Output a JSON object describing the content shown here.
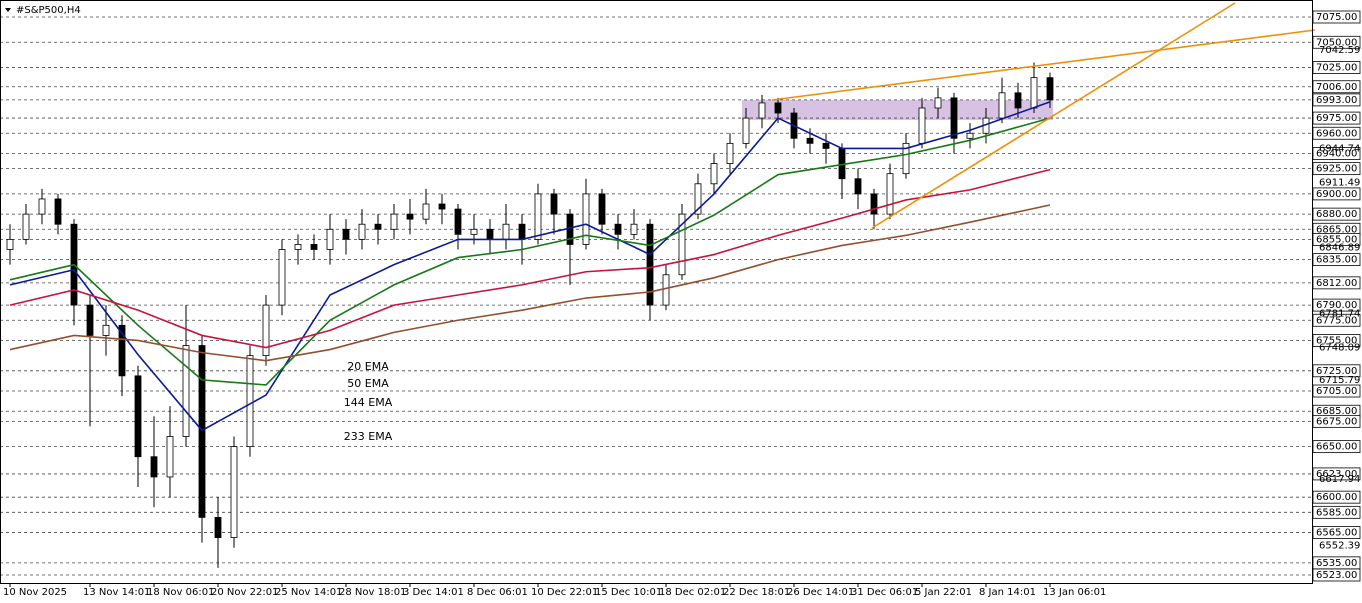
{
  "chart_data": {
    "type": "candlestick",
    "title": "#S&P500,H4",
    "xlim": [
      0,
      65
    ],
    "ylim": [
      6523,
      7075
    ],
    "xticks": [
      {
        "value": 0,
        "label": "10 Nov 2025"
      },
      {
        "value": 5,
        "label": "13 Nov 14:01"
      },
      {
        "value": 9,
        "label": "18 Nov 06:01"
      },
      {
        "value": 13,
        "label": "20 Nov 22:01"
      },
      {
        "value": 17,
        "label": "25 Nov 14:01"
      },
      {
        "value": 21,
        "label": "28 Nov 18:01"
      },
      {
        "value": 25,
        "label": "3 Dec 14:01"
      },
      {
        "value": 29,
        "label": "8 Dec 06:01"
      },
      {
        "value": 33,
        "label": "10 Dec 22:01"
      },
      {
        "value": 37,
        "label": "15 Dec 10:01"
      },
      {
        "value": 41,
        "label": "18 Dec 02:01"
      },
      {
        "value": 45,
        "label": "22 Dec 18:01"
      },
      {
        "value": 49,
        "label": "26 Dec 14:01"
      },
      {
        "value": 53,
        "label": "31 Dec 06:01"
      },
      {
        "value": 57,
        "label": "5 Jan 22:01"
      },
      {
        "value": 61,
        "label": "8 Jan 14:01"
      },
      {
        "value": 65,
        "label": "13 Jan 06:01"
      }
    ],
    "yticks": [
      {
        "value": 7075,
        "label": "7075.00"
      },
      {
        "value": 7050,
        "label": "7050.00"
      },
      {
        "value": 7025,
        "label": "7025.00"
      },
      {
        "value": 7006,
        "label": "7006.00"
      },
      {
        "value": 6993,
        "label": "6993.00"
      },
      {
        "value": 6975,
        "label": "6975.00"
      },
      {
        "value": 6960,
        "label": "6960.00"
      },
      {
        "value": 6940,
        "label": "6940.00"
      },
      {
        "value": 6925,
        "label": "6925.00"
      },
      {
        "value": 6900,
        "label": "6900.00"
      },
      {
        "value": 6880,
        "label": "6880.00"
      },
      {
        "value": 6865,
        "label": "6865.00"
      },
      {
        "value": 6855,
        "label": "6855.00"
      },
      {
        "value": 6835,
        "label": "6835.00"
      },
      {
        "value": 6812,
        "label": "6812.00"
      },
      {
        "value": 6790,
        "label": "6790.00"
      },
      {
        "value": 6775,
        "label": "6775.00"
      },
      {
        "value": 6755,
        "label": "6755.00"
      },
      {
        "value": 6725,
        "label": "6725.00"
      },
      {
        "value": 6705,
        "label": "6705.00"
      },
      {
        "value": 6685,
        "label": "6685.00"
      },
      {
        "value": 6675,
        "label": "6675.00"
      },
      {
        "value": 6650,
        "label": "6650.00"
      },
      {
        "value": 6623,
        "label": "6623.00"
      },
      {
        "value": 6600,
        "label": "6600.00"
      },
      {
        "value": 6585,
        "label": "6585.00"
      },
      {
        "value": 6565,
        "label": "6565.00"
      },
      {
        "value": 6535,
        "label": "6535.00"
      },
      {
        "value": 6523,
        "label": "6523.00"
      }
    ],
    "price_labels": [
      7042.59,
      6944.74,
      6911.49,
      6846.89,
      6781.74,
      6748.09,
      6715.79,
      6617.94,
      6552.39
    ],
    "ohlc": [
      [
        6845,
        6870,
        6830,
        6855
      ],
      [
        6855,
        6890,
        6850,
        6880
      ],
      [
        6880,
        6905,
        6870,
        6895
      ],
      [
        6895,
        6900,
        6860,
        6870
      ],
      [
        6870,
        6875,
        6770,
        6790
      ],
      [
        6790,
        6800,
        6670,
        6760
      ],
      [
        6760,
        6790,
        6740,
        6770
      ],
      [
        6770,
        6780,
        6700,
        6720
      ],
      [
        6720,
        6730,
        6610,
        6640
      ],
      [
        6640,
        6680,
        6590,
        6620
      ],
      [
        6620,
        6690,
        6600,
        6660
      ],
      [
        6660,
        6790,
        6650,
        6750
      ],
      [
        6750,
        6760,
        6555,
        6580
      ],
      [
        6580,
        6600,
        6530,
        6560
      ],
      [
        6560,
        6660,
        6550,
        6650
      ],
      [
        6650,
        6750,
        6640,
        6740
      ],
      [
        6740,
        6800,
        6730,
        6790
      ],
      [
        6790,
        6855,
        6780,
        6845
      ],
      [
        6845,
        6860,
        6830,
        6850
      ],
      [
        6850,
        6860,
        6835,
        6845
      ],
      [
        6845,
        6880,
        6830,
        6865
      ],
      [
        6865,
        6875,
        6840,
        6855
      ],
      [
        6855,
        6885,
        6845,
        6870
      ],
      [
        6870,
        6880,
        6850,
        6865
      ],
      [
        6865,
        6890,
        6855,
        6880
      ],
      [
        6880,
        6895,
        6860,
        6875
      ],
      [
        6875,
        6905,
        6870,
        6890
      ],
      [
        6890,
        6900,
        6870,
        6885
      ],
      [
        6885,
        6890,
        6845,
        6860
      ],
      [
        6860,
        6880,
        6850,
        6865
      ],
      [
        6865,
        6875,
        6840,
        6855
      ],
      [
        6855,
        6890,
        6845,
        6870
      ],
      [
        6870,
        6880,
        6830,
        6855
      ],
      [
        6855,
        6910,
        6850,
        6900
      ],
      [
        6900,
        6905,
        6860,
        6880
      ],
      [
        6880,
        6885,
        6810,
        6850
      ],
      [
        6850,
        6915,
        6845,
        6900
      ],
      [
        6900,
        6905,
        6860,
        6870
      ],
      [
        6870,
        6880,
        6845,
        6860
      ],
      [
        6860,
        6885,
        6855,
        6870
      ],
      [
        6870,
        6875,
        6775,
        6790
      ],
      [
        6790,
        6830,
        6785,
        6820
      ],
      [
        6820,
        6890,
        6815,
        6880
      ],
      [
        6880,
        6920,
        6875,
        6910
      ],
      [
        6910,
        6940,
        6900,
        6930
      ],
      [
        6930,
        6960,
        6920,
        6950
      ],
      [
        6950,
        6985,
        6945,
        6975
      ],
      [
        6975,
        6998,
        6965,
        6990
      ],
      [
        6990,
        6995,
        6970,
        6980
      ],
      [
        6980,
        6985,
        6945,
        6955
      ],
      [
        6955,
        6965,
        6940,
        6950
      ],
      [
        6950,
        6960,
        6930,
        6945
      ],
      [
        6945,
        6950,
        6895,
        6915
      ],
      [
        6915,
        6925,
        6885,
        6900
      ],
      [
        6900,
        6905,
        6865,
        6880
      ],
      [
        6880,
        6930,
        6875,
        6920
      ],
      [
        6920,
        6960,
        6915,
        6950
      ],
      [
        6950,
        6995,
        6945,
        6985
      ],
      [
        6985,
        7005,
        6975,
        6995
      ],
      [
        6995,
        7000,
        6940,
        6955
      ],
      [
        6955,
        6970,
        6945,
        6960
      ],
      [
        6960,
        6985,
        6950,
        6975
      ],
      [
        6975,
        7015,
        6970,
        7000
      ],
      [
        7000,
        7010,
        6975,
        6985
      ],
      [
        6985,
        7030,
        6980,
        7015
      ],
      [
        7015,
        7020,
        6985,
        6993
      ]
    ],
    "series": [
      {
        "name": "20 EMA",
        "color": "#0a1a9a",
        "x": [
          0,
          4,
          8,
          12,
          16,
          20,
          24,
          28,
          32,
          36,
          40,
          44,
          48,
          52,
          56,
          60,
          65
        ],
        "values": [
          6810,
          6825,
          6741,
          6666,
          6701,
          6800,
          6830,
          6855,
          6855,
          6870,
          6840,
          6900,
          6975,
          6945,
          6945,
          6963,
          6991
        ]
      },
      {
        "name": "50 EMA",
        "color": "#167a16",
        "x": [
          0,
          4,
          8,
          12,
          16,
          20,
          24,
          28,
          32,
          36,
          40,
          44,
          48,
          52,
          56,
          60,
          65
        ],
        "values": [
          6815,
          6830,
          6770,
          6716,
          6711,
          6775,
          6810,
          6837,
          6845,
          6859,
          6849,
          6879,
          6919,
          6929,
          6939,
          6953,
          6975
        ]
      },
      {
        "name": "144 EMA",
        "color": "#c8143c",
        "x": [
          0,
          4,
          8,
          12,
          16,
          20,
          24,
          28,
          32,
          36,
          40,
          44,
          48,
          52,
          56,
          60,
          65
        ],
        "values": [
          6790,
          6805,
          6785,
          6760,
          6748,
          6765,
          6790,
          6800,
          6810,
          6823,
          6827,
          6840,
          6859,
          6876,
          6894,
          6904,
          6924
        ]
      },
      {
        "name": "233 EMA",
        "color": "#94502e",
        "x": [
          0,
          4,
          8,
          12,
          16,
          20,
          24,
          28,
          32,
          36,
          40,
          44,
          48,
          52,
          56,
          60,
          65
        ],
        "values": [
          6746,
          6760,
          6755,
          6743,
          6735,
          6746,
          6763,
          6775,
          6785,
          6797,
          6803,
          6817,
          6835,
          6849,
          6859,
          6872,
          6889
        ]
      }
    ]
  }
}
